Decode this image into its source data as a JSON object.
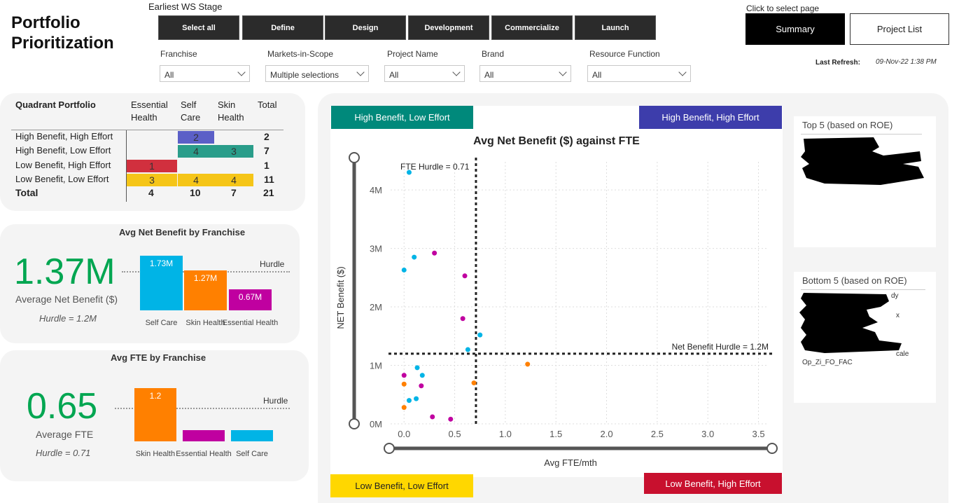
{
  "header": {
    "title_line1": "Portfolio",
    "title_line2": "Prioritization",
    "ws_label": "Earliest WS Stage",
    "stages": [
      "Select all",
      "Define",
      "Design",
      "Development",
      "Commercialize",
      "Launch"
    ],
    "page_label": "Click to select page",
    "pages": [
      "Summary",
      "Project List"
    ],
    "refresh_label": "Last Refresh:",
    "refresh_value": "09-Nov-22 1:38 PM"
  },
  "filters": [
    {
      "label": "Franchise",
      "value": "All"
    },
    {
      "label": "Markets-in-Scope",
      "value": "Multiple selections"
    },
    {
      "label": "Project Name",
      "value": "All"
    },
    {
      "label": "Brand",
      "value": "All"
    },
    {
      "label": "Resource Function",
      "value": "All"
    }
  ],
  "quadrant_table": {
    "title": "Quadrant Portfolio",
    "col1": [
      "Essential",
      "Health"
    ],
    "col2": [
      "Self",
      "Care"
    ],
    "col3": [
      "Skin",
      "Health"
    ],
    "col_total": "Total",
    "rows": [
      {
        "label": "High Benefit, High Effort",
        "eh": "",
        "sc": "2",
        "sh": "",
        "total": "2"
      },
      {
        "label": "High Benefit, Low Effort",
        "eh": "",
        "sc": "4",
        "sh": "3",
        "total": "7"
      },
      {
        "label": "Low Benefit, High Effort",
        "eh": "1",
        "sc": "",
        "sh": "",
        "total": "1"
      },
      {
        "label": "Low Benefit, Low Effort",
        "eh": "3",
        "sc": "4",
        "sh": "4",
        "total": "11"
      }
    ],
    "total_row": {
      "label": "Total",
      "eh": "4",
      "sc": "10",
      "sh": "7",
      "total": "21"
    },
    "colors": {
      "hbhe": "#5b5fc7",
      "hble": "#2a9d8a",
      "lbhe": "#d1303e",
      "lble": "#f5c518"
    }
  },
  "net_benefit": {
    "title": "Avg Net Benefit by Franchise",
    "big": "1.37M",
    "sub": "Average Net Benefit ($)",
    "hurdle": "Hurdle = 1.2M",
    "hurdle_label": "Hurdle",
    "bars": [
      {
        "label": "1.73M",
        "cat": "Self Care",
        "value": 1.73,
        "color": "#00b4e6"
      },
      {
        "label": "1.27M",
        "cat": "Skin Health",
        "value": 1.27,
        "color": "#ff8000"
      },
      {
        "label": "0.67M",
        "cat": "Essential Health",
        "value": 0.67,
        "color": "#c000a0"
      }
    ]
  },
  "fte": {
    "title": "Avg FTE by Franchise",
    "big": "0.65",
    "sub": "Average FTE",
    "hurdle": "Hurdle = 0.71",
    "hurdle_label": "Hurdle",
    "bars": [
      {
        "label": "1.2",
        "cat": "Skin Health",
        "value": 1.2,
        "color": "#ff8000"
      },
      {
        "label": "",
        "cat": "Essential Health",
        "value": 0.25,
        "color": "#c000a0"
      },
      {
        "label": "",
        "cat": "Self Care",
        "value": 0.25,
        "color": "#00b4e6"
      }
    ]
  },
  "quadrant_buttons": {
    "hble": {
      "label": "High Benefit, Low Effort",
      "color": "#00897b"
    },
    "hbhe": {
      "label": "High Benefit, High Effort",
      "color": "#3d3dab"
    },
    "lble": {
      "label": "Low Benefit, Low Effort",
      "color": "#ffd700"
    },
    "lbhe": {
      "label": "Low Benefit, High Effort",
      "color": "#c8102e"
    }
  },
  "chart_data": {
    "type": "scatter",
    "title": "Avg Net Benefit ($) against FTE",
    "xlabel": "Avg FTE/mth",
    "ylabel": "NET Benefit ($)",
    "xlim": [
      -0.05,
      3.6
    ],
    "ylim": [
      0,
      4.6
    ],
    "x_ticks": [
      "0.0",
      "0.5",
      "1.0",
      "1.5",
      "2.0",
      "2.5",
      "3.0",
      "3.5"
    ],
    "y_ticks": [
      "0M",
      "1M",
      "2M",
      "3M",
      "4M"
    ],
    "fte_hurdle": {
      "x": 0.71,
      "label": "FTE Hurdle = 0.71"
    },
    "benefit_hurdle": {
      "y": 1.2,
      "label": "Net Benefit Hurdle = 1.2M"
    },
    "series": [
      {
        "name": "Self Care",
        "color": "#00b4e6",
        "points": [
          [
            0.05,
            4.3
          ],
          [
            0.1,
            2.85
          ],
          [
            0.0,
            2.63
          ],
          [
            0.75,
            1.52
          ],
          [
            0.63,
            1.27
          ],
          [
            0.13,
            0.96
          ],
          [
            0.18,
            0.83
          ],
          [
            0.05,
            0.4
          ],
          [
            0.12,
            0.43
          ]
        ]
      },
      {
        "name": "Essential Health",
        "color": "#c000a0",
        "points": [
          [
            0.3,
            2.92
          ],
          [
            0.6,
            2.53
          ],
          [
            0.58,
            1.8
          ],
          [
            0.0,
            0.83
          ],
          [
            0.17,
            0.65
          ],
          [
            0.28,
            0.12
          ],
          [
            0.46,
            0.08
          ]
        ]
      },
      {
        "name": "Skin Health",
        "color": "#ff8000",
        "points": [
          [
            1.22,
            1.02
          ],
          [
            0.69,
            0.7
          ],
          [
            0.0,
            0.68
          ],
          [
            0.0,
            0.28
          ]
        ]
      }
    ]
  },
  "top5": {
    "title": "Top 5 (based on ROE)"
  },
  "bottom5": {
    "title": "Bottom 5 (based on ROE)",
    "visible_text": [
      "dy",
      "x",
      "cale",
      "Op_Zi_FO_FAC"
    ]
  }
}
